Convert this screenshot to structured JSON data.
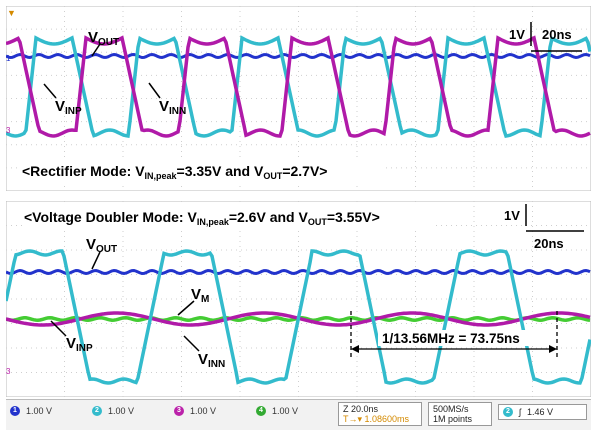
{
  "top_panel": {
    "caption": "<Rectifier Mode: V",
    "caption_sub": "IN,peak",
    "caption_mid": "=3.35V and V",
    "caption_sub2": "OUT",
    "caption_end": "=2.7V>",
    "labels": {
      "vout": "V",
      "vout_sub": "OUT",
      "vinp": "V",
      "vinp_sub": "INP",
      "vinn": "V",
      "vinn_sub": "INN"
    },
    "scale_v": "1V",
    "scale_t": "20ns",
    "marker_ch1": "1",
    "marker_ch3": "3"
  },
  "bottom_panel": {
    "caption": "<Voltage Doubler Mode: V",
    "caption_sub": "IN,peak",
    "caption_mid": "=2.6V and V",
    "caption_sub2": "OUT",
    "caption_end": "=3.55V>",
    "labels": {
      "vout": "V",
      "vout_sub": "OUT",
      "vm": "V",
      "vm_sub": "M",
      "vinp": "V",
      "vinp_sub": "INP",
      "vinn": "V",
      "vinn_sub": "INN"
    },
    "period_annotation": "1/13.56MHz = 73.75ns",
    "scale_v": "1V",
    "scale_t": "20ns",
    "marker_ch3": "3"
  },
  "status_bar": {
    "channels": [
      {
        "num": "1",
        "value": "1.00 V",
        "color": "#2233cc"
      },
      {
        "num": "2",
        "value": "1.00 V",
        "color": "#33bbcc"
      },
      {
        "num": "3",
        "value": "1.00 V",
        "color": "#bb22aa"
      },
      {
        "num": "4",
        "value": "1.00 V",
        "color": "#33aa33"
      }
    ],
    "timebase": "20.0ns",
    "trigger_pos": "1.08600ms",
    "sample_rate": "500MS/s",
    "record_length": "1M points",
    "trigger_channel": "2",
    "trigger_level": "1.46 V"
  }
}
